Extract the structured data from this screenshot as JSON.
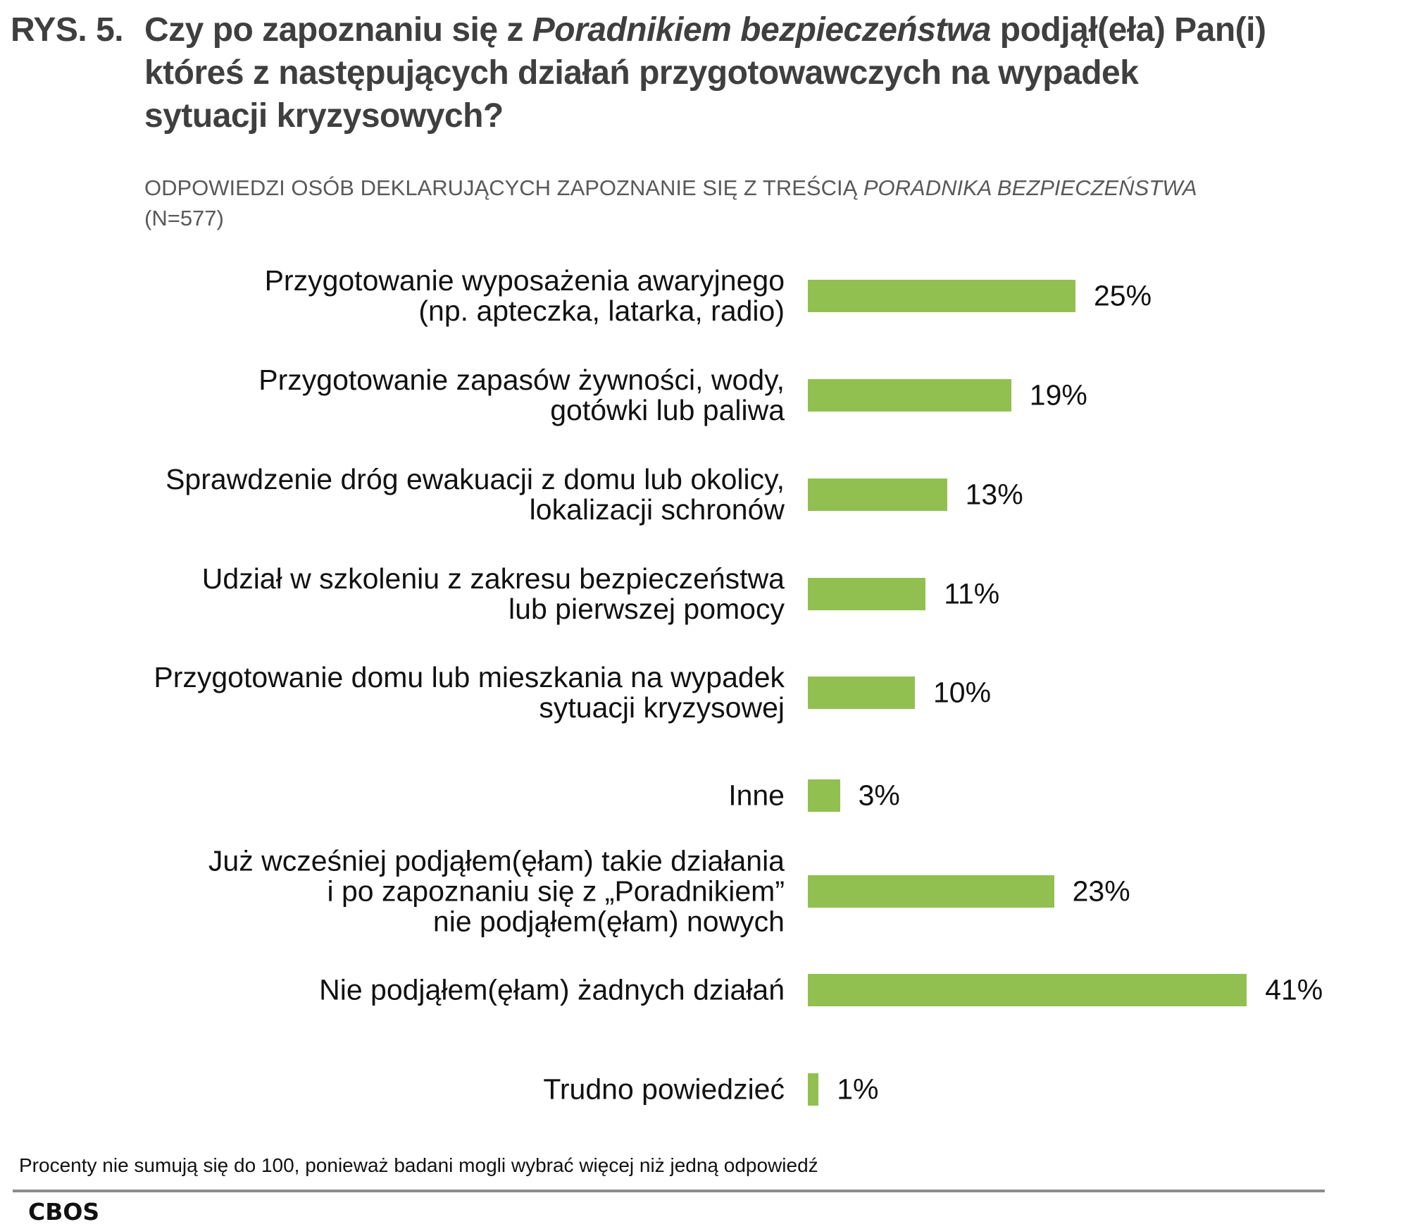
{
  "chart_data": {
    "type": "bar",
    "orientation": "horizontal",
    "title_prefix": "RYS. 5.",
    "title_lines": [
      "Czy po zapoznaniu się z ",
      "Poradnikiem bezpieczeństwa",
      " podjął(eła) Pan(i)",
      "któreś z następujących działań przygotowawczych na wypadek",
      "sytuacji kryzysowych?"
    ],
    "subtitle_main": "ODPOWIEDZI OSÓB DEKLARUJĄCYCH ZAPOZNANIE SIĘ Z TREŚCIĄ ",
    "subtitle_italic": "PORADNIKA BEZPIECZEŃSTWA",
    "subtitle_n": "(N=577)",
    "categories": [
      [
        "Przygotowanie wyposażenia awaryjnego",
        "(np. apteczka, latarka, radio)"
      ],
      [
        "Przygotowanie zapasów żywności, wody,",
        "gotówki lub paliwa"
      ],
      [
        "Sprawdzenie dróg ewakuacji z domu lub okolicy,",
        "lokalizacji schronów"
      ],
      [
        "Udział w szkoleniu z zakresu bezpieczeństwa",
        "lub pierwszej pomocy"
      ],
      [
        "Przygotowanie domu lub mieszkania na wypadek",
        "sytuacji kryzysowej"
      ],
      [
        "Inne"
      ],
      [
        "Już wcześniej podjąłem(ęłam) takie działania",
        "i po zapoznaniu się z „Poradnikiem”",
        "nie podjąłem(ęłam) nowych"
      ],
      [
        "Nie podjąłem(ęłam) żadnych działań"
      ],
      [
        "Trudno powiedzieć"
      ]
    ],
    "values": [
      25,
      19,
      13,
      11,
      10,
      3,
      23,
      41,
      1
    ],
    "value_labels": [
      "25%",
      "19%",
      "13%",
      "11%",
      "10%",
      "3%",
      "23%",
      "41%",
      "1%"
    ],
    "unit": "%",
    "bar_color": "#92c050",
    "grid": false,
    "legend": "none"
  },
  "footnote": "Procenty nie sumują się do 100, ponieważ badani mogli wybrać więcej niż jedną odpowiedź",
  "source": "CBOS"
}
